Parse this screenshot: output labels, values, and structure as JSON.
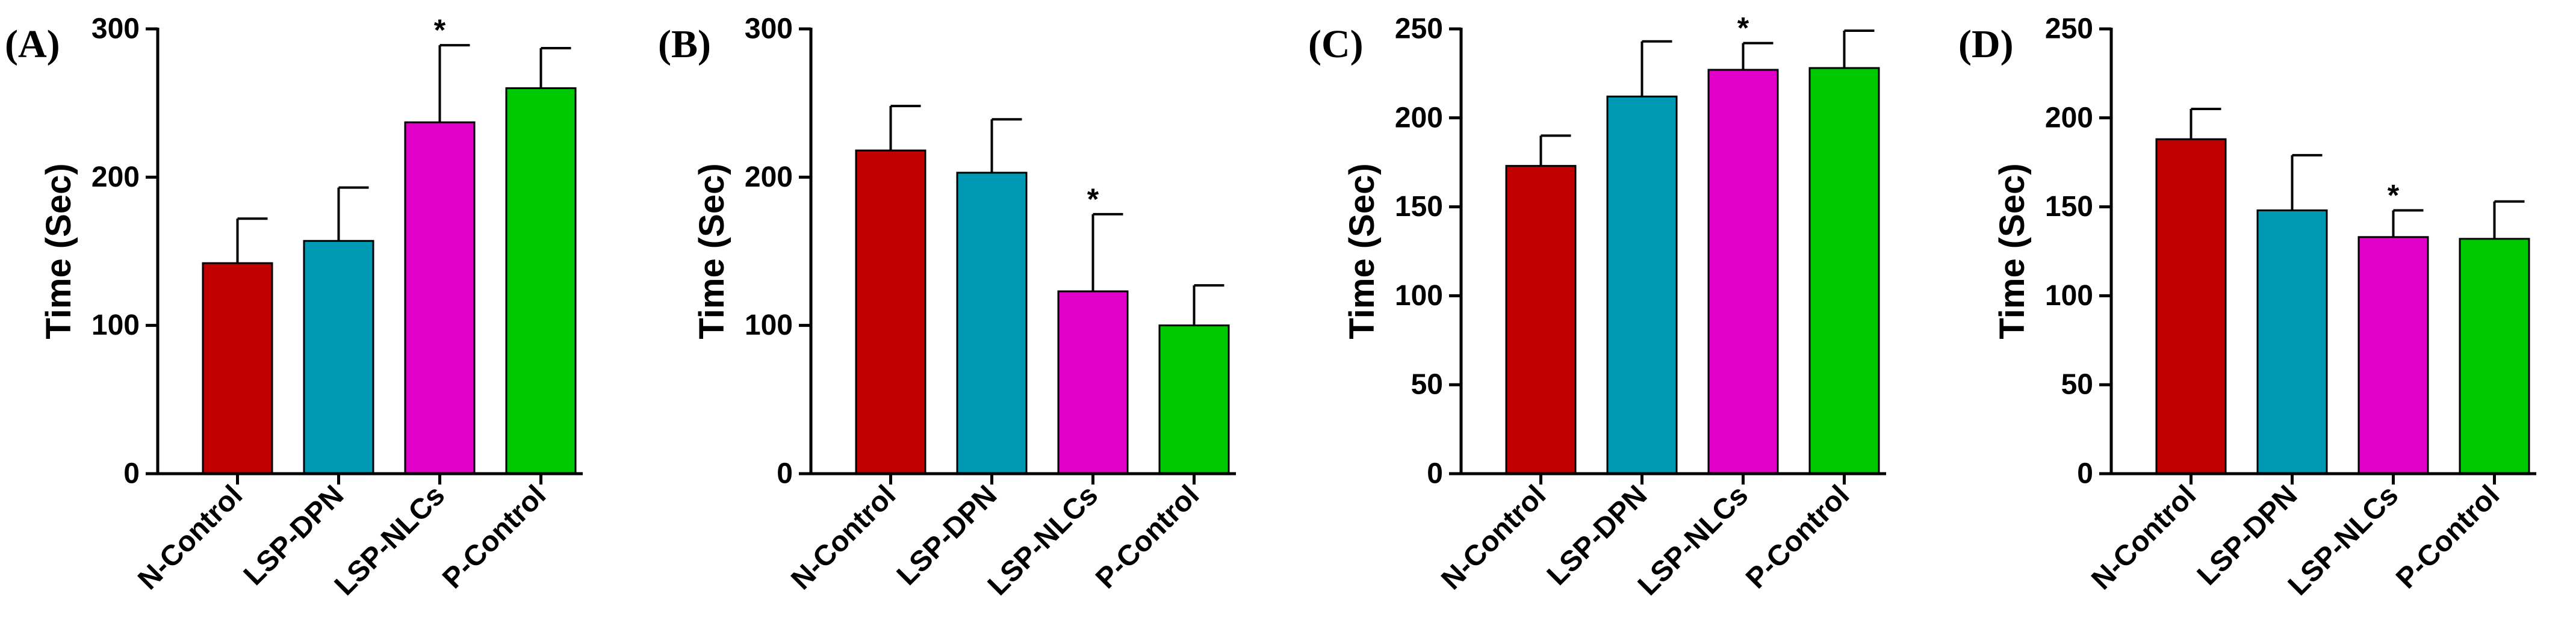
{
  "colors": {
    "N-Control": "#c00000",
    "LSP-DPN": "#0099b4",
    "LSP-NLCs": "#e000c8",
    "P-Control": "#00c800"
  },
  "chart_data": [
    {
      "panel": "(A)",
      "type": "bar",
      "ylabel": "Time (Sec)",
      "categories": [
        "N-Control",
        "LSP-DPN",
        "LSP-NLCs",
        "P-Control"
      ],
      "values": [
        142,
        157,
        237,
        260
      ],
      "errors": [
        30,
        36,
        52,
        27
      ],
      "significance": [
        "",
        "",
        "*",
        ""
      ],
      "ylim": [
        0,
        300
      ],
      "yticks": [
        0,
        100,
        200,
        300
      ],
      "ytick_labels": [
        "0",
        "100",
        "200",
        "300"
      ]
    },
    {
      "panel": "(B)",
      "type": "bar",
      "ylabel": "Time (Sec)",
      "categories": [
        "N-Control",
        "LSP-DPN",
        "LSP-NLCs",
        "P-Control"
      ],
      "values": [
        218,
        203,
        123,
        100
      ],
      "errors": [
        30,
        36,
        52,
        27
      ],
      "significance": [
        "",
        "",
        "*",
        ""
      ],
      "ylim": [
        0,
        300
      ],
      "yticks": [
        0,
        100,
        200,
        300
      ],
      "ytick_labels": [
        "0",
        "100",
        "200",
        "300"
      ]
    },
    {
      "panel": "(C)",
      "type": "bar",
      "ylabel": "Time (Sec)",
      "categories": [
        "N-Control",
        "LSP-DPN",
        "LSP-NLCs",
        "P-Control"
      ],
      "values": [
        173,
        212,
        227,
        228
      ],
      "errors": [
        17,
        31,
        15,
        21
      ],
      "significance": [
        "",
        "",
        "*",
        ""
      ],
      "ylim": [
        0,
        250
      ],
      "yticks": [
        0,
        50,
        100,
        150,
        200,
        250
      ],
      "ytick_labels": [
        "0",
        "50",
        "100",
        "150",
        "200",
        "250"
      ]
    },
    {
      "panel": "(D)",
      "type": "bar",
      "ylabel": "Time (Sec)",
      "categories": [
        "N-Control",
        "LSP-DPN",
        "LSP-NLCs",
        "P-Control"
      ],
      "values": [
        188,
        148,
        133,
        132
      ],
      "errors": [
        17,
        31,
        15,
        21
      ],
      "significance": [
        "",
        "",
        "*",
        ""
      ],
      "ylim": [
        0,
        250
      ],
      "yticks": [
        0,
        50,
        100,
        150,
        200,
        250
      ],
      "ytick_labels": [
        "0",
        "50",
        "100",
        "150",
        "200",
        "250"
      ]
    }
  ]
}
